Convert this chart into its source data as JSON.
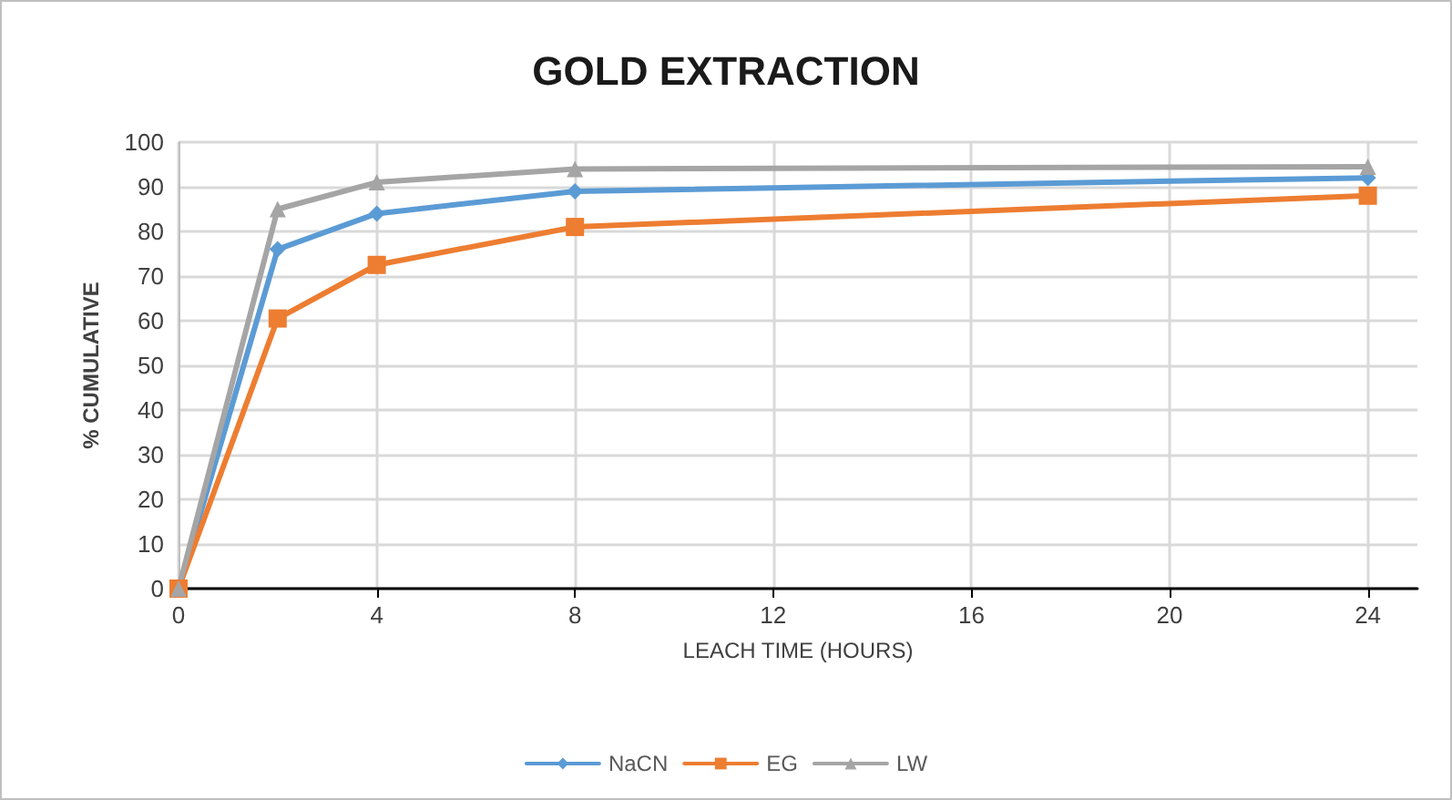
{
  "chart_data": {
    "type": "line",
    "title": "GOLD EXTRACTION",
    "xlabel": "LEACH TIME (HOURS)",
    "ylabel": "% CUMULATIVE",
    "x": [
      0,
      2,
      4,
      8,
      24
    ],
    "series": [
      {
        "name": "NaCN",
        "color": "#5b9bd5",
        "marker": "diamond",
        "values": [
          0,
          76,
          84,
          89,
          92
        ]
      },
      {
        "name": "EG",
        "color": "#ed7d31",
        "marker": "square",
        "values": [
          0,
          60.5,
          72.5,
          81,
          88
        ]
      },
      {
        "name": "LW",
        "color": "#a5a5a5",
        "marker": "triangle",
        "values": [
          0,
          85,
          91,
          94,
          94.5
        ]
      }
    ],
    "xlim": [
      0,
      25
    ],
    "xticks": [
      0,
      4,
      8,
      12,
      16,
      20,
      24
    ],
    "ylim": [
      0,
      100
    ],
    "yticks": [
      0,
      10,
      20,
      30,
      40,
      50,
      60,
      70,
      80,
      90,
      100
    ],
    "grid": true,
    "legend": "bottom",
    "line_style": "solid"
  }
}
